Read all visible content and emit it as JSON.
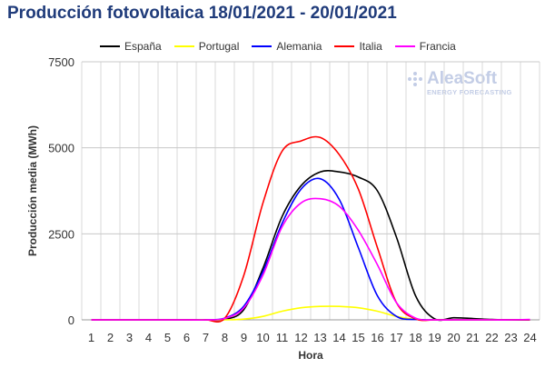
{
  "title": "Producción fotovoltaica 18/01/2021 - 20/01/2021",
  "logo": {
    "name": "AleaSoft",
    "tagline": "ENERGY FORECASTING"
  },
  "chart_data": {
    "type": "line",
    "title": "Producción fotovoltaica 18/01/2021 - 20/01/2021",
    "xlabel": "Hora",
    "ylabel": "Producción media (MWh)",
    "ylim": [
      0,
      7500
    ],
    "yticks": [
      0,
      2500,
      5000,
      7500
    ],
    "ytick_labels": [
      "0",
      "2500",
      "5000",
      "7500"
    ],
    "grid": {
      "x": true,
      "y": true
    },
    "legend": "top",
    "categories": [
      "1",
      "2",
      "3",
      "4",
      "5",
      "6",
      "7",
      "8",
      "9",
      "10",
      "11",
      "12",
      "13",
      "14",
      "15",
      "16",
      "17",
      "18",
      "19",
      "20",
      "21",
      "22",
      "23",
      "24"
    ],
    "x": [
      1,
      2,
      3,
      4,
      5,
      6,
      7,
      8,
      9,
      10,
      11,
      12,
      13,
      14,
      15,
      16,
      17,
      18,
      19,
      20,
      21,
      22,
      23,
      24
    ],
    "series": [
      {
        "name": "España",
        "color": "#000000",
        "values": [
          0,
          0,
          0,
          0,
          0,
          0,
          0,
          10,
          300,
          1500,
          3000,
          3900,
          4300,
          4300,
          4150,
          3750,
          2400,
          700,
          30,
          60,
          40,
          10,
          0,
          0
        ]
      },
      {
        "name": "Portugal",
        "color": "#ffff00",
        "values": [
          0,
          0,
          0,
          0,
          0,
          0,
          0,
          0,
          20,
          100,
          250,
          350,
          390,
          390,
          350,
          250,
          100,
          10,
          0,
          0,
          0,
          0,
          0,
          0
        ]
      },
      {
        "name": "Alemania",
        "color": "#0000ff",
        "values": [
          0,
          0,
          0,
          0,
          0,
          0,
          0,
          50,
          400,
          1400,
          2800,
          3800,
          4100,
          3500,
          2100,
          700,
          100,
          10,
          0,
          0,
          0,
          0,
          0,
          0
        ]
      },
      {
        "name": "Italia",
        "color": "#ff0000",
        "values": [
          0,
          0,
          0,
          0,
          0,
          0,
          0,
          50,
          1300,
          3400,
          4900,
          5200,
          5300,
          4800,
          3800,
          2100,
          500,
          30,
          0,
          0,
          0,
          0,
          0,
          0
        ]
      },
      {
        "name": "Francia",
        "color": "#ff00ff",
        "values": [
          0,
          0,
          0,
          0,
          0,
          0,
          0,
          40,
          350,
          1300,
          2700,
          3400,
          3520,
          3300,
          2600,
          1600,
          500,
          50,
          0,
          0,
          0,
          0,
          0,
          10
        ]
      }
    ]
  }
}
